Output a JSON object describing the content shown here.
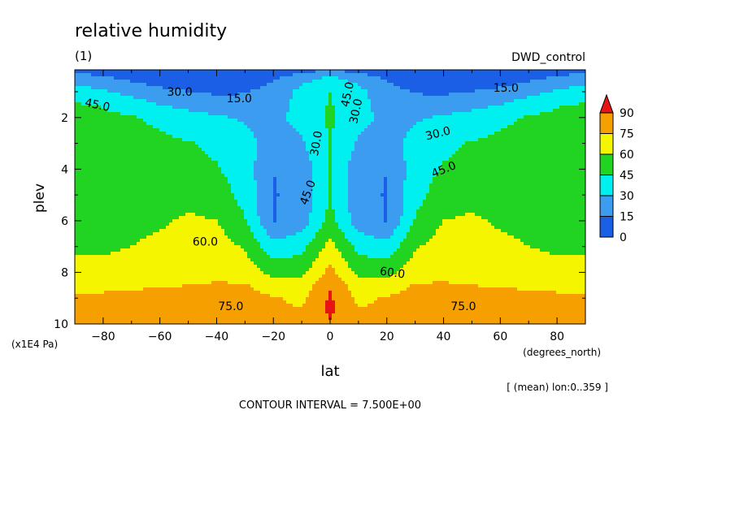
{
  "header": {
    "title": "relative humidity",
    "panel": "(1)",
    "experiment": "DWD_control"
  },
  "footer": {
    "averaging": "[ (mean) lon:0..359 ]",
    "contour_interval": "CONTOUR INTERVAL = 7.500E+00"
  },
  "chart_data": {
    "type": "heatmap",
    "title": "relative humidity",
    "subtitle": "(1)",
    "experiment": "DWD_control",
    "xlabel": "lat",
    "x_units": "(degrees_north)",
    "ylabel": "plev",
    "y_units": "(x1E4 Pa)",
    "xlim": [
      -90,
      90
    ],
    "ylim": [
      10,
      0.15
    ],
    "y_inverted": true,
    "x_ticks": [
      -80,
      -60,
      -40,
      -20,
      0,
      20,
      40,
      60,
      80
    ],
    "y_ticks": [
      2,
      4,
      6,
      8,
      10
    ],
    "contour_interval": 7.5,
    "colorbar": {
      "levels": [
        0,
        15,
        30,
        45,
        60,
        75,
        90
      ],
      "colors": [
        "#1a5fe6",
        "#3c9cf0",
        "#00f0f0",
        "#22d422",
        "#f5f500",
        "#f5a000",
        "#e61414"
      ]
    },
    "labeled_contours": [
      {
        "text": "15.0"
      },
      {
        "text": "30.0"
      },
      {
        "text": "45.0"
      },
      {
        "text": "60.0"
      },
      {
        "text": "75.0"
      }
    ],
    "lat_grid": [
      -90,
      -80,
      -70,
      -60,
      -50,
      -40,
      -30,
      -20,
      -10,
      0,
      10,
      20,
      30,
      40,
      50,
      60,
      70,
      80,
      90
    ],
    "plev_grid": [
      0.15,
      0.5,
      1,
      1.5,
      2,
      3,
      4,
      5,
      6,
      7,
      8,
      8.5,
      9,
      9.5,
      10
    ],
    "values": [
      [
        10,
        9,
        7,
        5,
        4,
        3,
        3,
        5,
        10,
        14,
        10,
        5,
        3,
        3,
        4,
        5,
        7,
        9,
        10
      ],
      [
        22,
        18,
        12,
        9,
        8,
        7,
        8,
        14,
        25,
        34,
        25,
        14,
        8,
        7,
        8,
        9,
        12,
        18,
        22
      ],
      [
        38,
        32,
        25,
        18,
        15,
        13,
        14,
        20,
        35,
        45,
        35,
        20,
        14,
        13,
        15,
        18,
        25,
        32,
        38
      ],
      [
        46,
        44,
        38,
        30,
        25,
        22,
        20,
        22,
        36,
        46,
        36,
        22,
        20,
        22,
        25,
        30,
        38,
        44,
        46
      ],
      [
        50,
        48,
        46,
        42,
        36,
        32,
        28,
        25,
        36,
        47,
        36,
        25,
        28,
        32,
        36,
        42,
        46,
        48,
        50
      ],
      [
        52,
        52,
        50,
        48,
        46,
        42,
        36,
        22,
        28,
        46,
        28,
        22,
        36,
        42,
        46,
        48,
        50,
        52,
        52
      ],
      [
        54,
        54,
        52,
        52,
        50,
        46,
        38,
        15,
        20,
        45,
        20,
        15,
        38,
        46,
        50,
        52,
        52,
        54,
        54
      ],
      [
        55,
        54,
        54,
        54,
        56,
        52,
        40,
        14,
        20,
        45,
        20,
        14,
        40,
        52,
        56,
        54,
        54,
        54,
        55
      ],
      [
        56,
        55,
        56,
        58,
        62,
        60,
        46,
        14,
        22,
        50,
        22,
        14,
        46,
        60,
        62,
        58,
        56,
        55,
        56
      ],
      [
        58,
        58,
        60,
        63,
        66,
        67,
        58,
        35,
        40,
        65,
        40,
        35,
        58,
        67,
        66,
        63,
        60,
        58,
        58
      ],
      [
        64,
        64,
        66,
        68,
        70,
        72,
        70,
        55,
        55,
        80,
        55,
        55,
        70,
        72,
        70,
        68,
        66,
        64,
        64
      ],
      [
        70,
        70,
        72,
        74,
        75,
        76,
        76,
        68,
        66,
        88,
        66,
        68,
        76,
        76,
        75,
        74,
        72,
        70,
        70
      ],
      [
        78,
        79,
        80,
        80,
        80,
        81,
        80,
        76,
        72,
        92,
        72,
        76,
        80,
        81,
        80,
        80,
        80,
        79,
        78
      ],
      [
        80,
        80,
        81,
        82,
        81,
        80,
        80,
        78,
        76,
        93,
        76,
        78,
        80,
        80,
        81,
        82,
        81,
        80,
        80
      ],
      [
        78,
        78,
        78,
        80,
        80,
        79,
        78,
        76,
        76,
        88,
        76,
        76,
        78,
        79,
        80,
        80,
        78,
        78,
        78
      ]
    ]
  }
}
